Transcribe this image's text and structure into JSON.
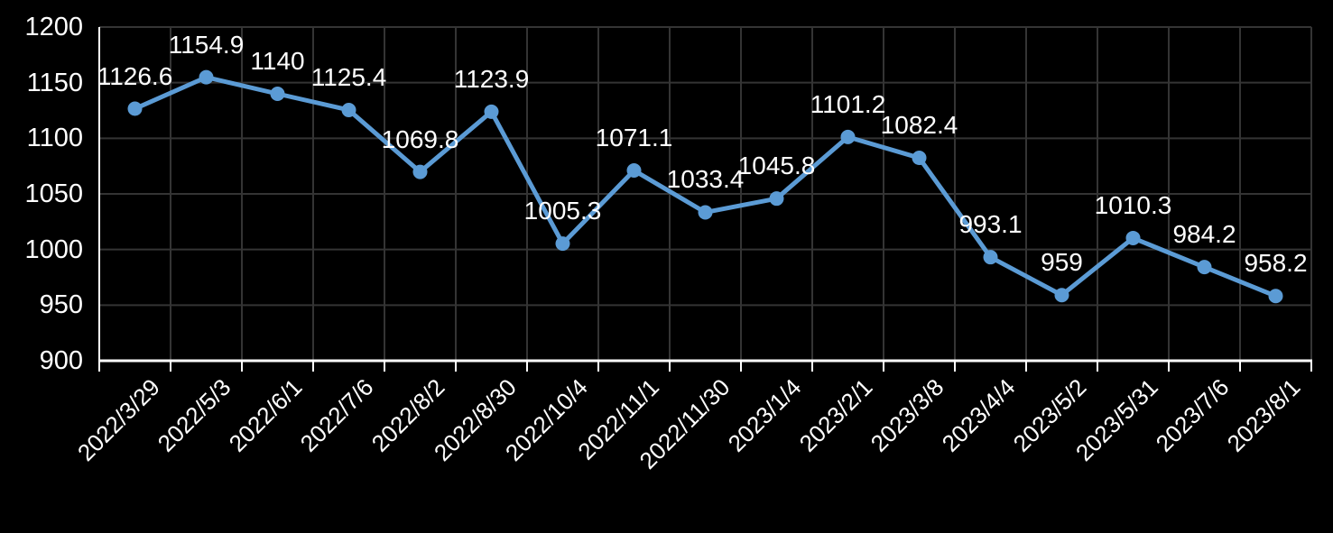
{
  "chart_data": {
    "type": "line",
    "title": "",
    "xlabel": "",
    "ylabel": "",
    "categories": [
      "2022/3/29",
      "2022/5/3",
      "2022/6/1",
      "2022/7/6",
      "2022/8/2",
      "2022/8/30",
      "2022/10/4",
      "2022/11/1",
      "2022/11/30",
      "2023/1/4",
      "2023/2/1",
      "2023/3/8",
      "2023/4/4",
      "2023/5/2",
      "2023/5/31",
      "2023/7/6",
      "2023/8/1"
    ],
    "values": [
      1126.6,
      1154.9,
      1140,
      1125.4,
      1069.8,
      1123.9,
      1005.3,
      1071.1,
      1033.4,
      1045.8,
      1101.2,
      1082.4,
      993.1,
      959,
      1010.3,
      984.2,
      958.2
    ],
    "point_labels": [
      "1126.6",
      "1154.9",
      "1140",
      "1125.4",
      "1069.8",
      "1123.9",
      "1005.3",
      "1071.1",
      "1033.4",
      "1045.8",
      "1101.2",
      "1082.4",
      "993.1",
      "959",
      "1010.3",
      "984.2",
      "958.2"
    ],
    "yticks": [
      900,
      950,
      1000,
      1050,
      1100,
      1150,
      1200
    ],
    "ylim": [
      900,
      1200
    ],
    "grid": true,
    "legend_position": "none",
    "colors": {
      "background": "#000000",
      "line": "#5B9BD5",
      "marker": "#5B9BD5",
      "gridline": "#343434",
      "axis": "#FFFFFF",
      "text": "#FFFFFF"
    }
  }
}
